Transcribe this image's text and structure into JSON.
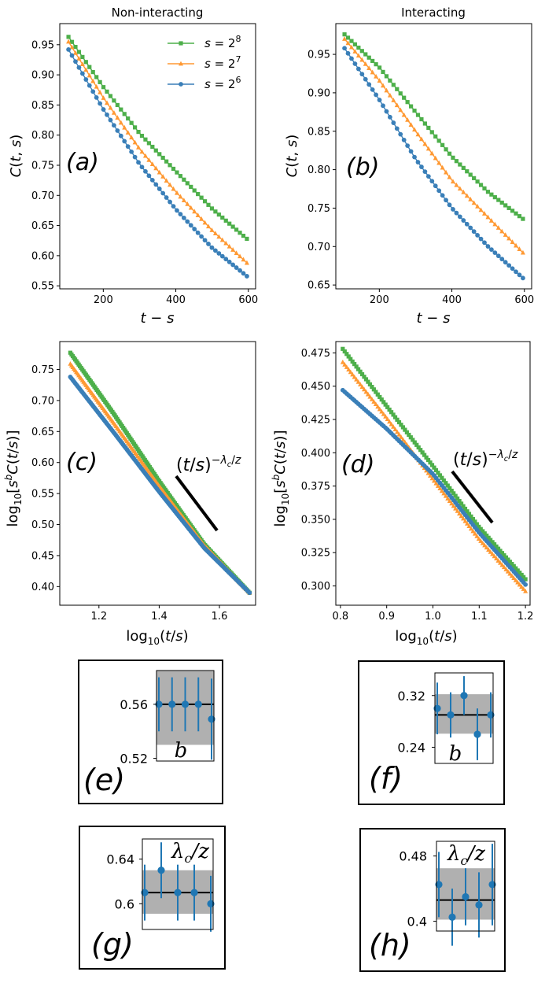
{
  "colors": {
    "s8": "#4daf4a",
    "s7": "#ff9933",
    "s6": "#3a7fb8",
    "inset_point": "#1f77b4",
    "band": "#b0b0b0"
  },
  "chart_data": [
    {
      "id": "a",
      "type": "line",
      "title": "Non-interacting",
      "panel_label": "(a)",
      "xlabel": "t − s",
      "ylabel": "C(t, s)",
      "xlim": [
        80,
        620
      ],
      "ylim": [
        0.545,
        0.985
      ],
      "xticks": [
        "200",
        "400",
        "600"
      ],
      "yticks": [
        "0.55",
        "0.60",
        "0.65",
        "0.70",
        "0.75",
        "0.80",
        "0.85",
        "0.90",
        "0.95"
      ],
      "legend_position": "top-right",
      "series": [
        {
          "name": "s = 2^8",
          "marker": "square",
          "x": [
            104,
            200,
            300,
            400,
            500,
            596
          ],
          "values": [
            0.963,
            0.88,
            0.803,
            0.74,
            0.678,
            0.628
          ]
        },
        {
          "name": "s = 2^7",
          "marker": "triangle",
          "x": [
            104,
            200,
            300,
            400,
            500,
            596
          ],
          "values": [
            0.955,
            0.862,
            0.777,
            0.706,
            0.642,
            0.588
          ]
        },
        {
          "name": "s = 2^6",
          "marker": "circle",
          "x": [
            104,
            200,
            300,
            400,
            500,
            596
          ],
          "values": [
            0.942,
            0.843,
            0.752,
            0.677,
            0.613,
            0.566
          ]
        }
      ]
    },
    {
      "id": "b",
      "type": "line",
      "title": "Interacting",
      "panel_label": "(b)",
      "xlabel": "t − s",
      "ylabel": "C(t, s)",
      "xlim": [
        80,
        620
      ],
      "ylim": [
        0.645,
        0.99
      ],
      "xticks": [
        "200",
        "400",
        "600"
      ],
      "yticks": [
        "0.65",
        "0.70",
        "0.75",
        "0.80",
        "0.85",
        "0.90",
        "0.95"
      ],
      "series": [
        {
          "name": "s = 2^8",
          "marker": "square",
          "x": [
            104,
            200,
            300,
            400,
            500,
            596
          ],
          "values": [
            0.976,
            0.933,
            0.875,
            0.817,
            0.771,
            0.736
          ]
        },
        {
          "name": "s = 2^7",
          "marker": "triangle",
          "x": [
            104,
            200,
            300,
            400,
            500,
            596
          ],
          "values": [
            0.97,
            0.916,
            0.85,
            0.786,
            0.738,
            0.692
          ]
        },
        {
          "name": "s = 2^6",
          "marker": "circle",
          "x": [
            104,
            200,
            300,
            400,
            500,
            596
          ],
          "values": [
            0.958,
            0.891,
            0.814,
            0.75,
            0.7,
            0.659
          ]
        }
      ]
    },
    {
      "id": "c",
      "type": "line",
      "panel_label": "(c)",
      "xlabel": "log10(t/s)",
      "ylabel": "log10[s^b C(t/s)]",
      "xlim": [
        1.07,
        1.72
      ],
      "ylim": [
        0.37,
        0.795
      ],
      "xticks": [
        "1.2",
        "1.4",
        "1.6"
      ],
      "yticks": [
        "0.40",
        "0.45",
        "0.50",
        "0.55",
        "0.60",
        "0.65",
        "0.70",
        "0.75"
      ],
      "annotation": "(t/s)^(−λc/z)",
      "series": [
        {
          "name": "s = 2^8",
          "marker": "square",
          "x": [
            1.105,
            1.25,
            1.4,
            1.55,
            1.7
          ],
          "values": [
            0.777,
            0.678,
            0.57,
            0.468,
            0.39
          ]
        },
        {
          "name": "s = 2^7",
          "marker": "triangle",
          "x": [
            1.105,
            1.25,
            1.4,
            1.55,
            1.7
          ],
          "values": [
            0.759,
            0.663,
            0.562,
            0.466,
            0.39
          ]
        },
        {
          "name": "s = 2^6",
          "marker": "circle",
          "x": [
            1.105,
            1.25,
            1.4,
            1.55,
            1.7
          ],
          "values": [
            0.738,
            0.648,
            0.553,
            0.462,
            0.39
          ]
        }
      ]
    },
    {
      "id": "d",
      "type": "line",
      "panel_label": "(d)",
      "xlabel": "log10(t/s)",
      "ylabel": "log10[s^b C(t/s)]",
      "xlim": [
        0.79,
        1.21
      ],
      "ylim": [
        0.2855,
        0.4835
      ],
      "xticks": [
        "0.8",
        "0.9",
        "1.0",
        "1.1",
        "1.2"
      ],
      "yticks": [
        "0.300",
        "0.325",
        "0.350",
        "0.375",
        "0.400",
        "0.425",
        "0.450",
        "0.475"
      ],
      "annotation": "(t/s)^(−λc/z)",
      "series": [
        {
          "name": "s = 2^8",
          "marker": "square",
          "x": [
            0.805,
            0.9,
            1.0,
            1.1,
            1.2
          ],
          "values": [
            0.478,
            0.435,
            0.39,
            0.344,
            0.305
          ]
        },
        {
          "name": "s = 2^7",
          "marker": "triangle",
          "x": [
            0.805,
            0.9,
            1.0,
            1.1,
            1.2
          ],
          "values": [
            0.468,
            0.426,
            0.38,
            0.335,
            0.296
          ]
        },
        {
          "name": "s = 2^6",
          "marker": "circle",
          "x": [
            0.805,
            0.9,
            1.0,
            1.1,
            1.2
          ],
          "values": [
            0.447,
            0.418,
            0.384,
            0.34,
            0.301
          ]
        }
      ]
    },
    {
      "id": "e",
      "type": "scatter",
      "panel_label": "(e)",
      "inset_label": "b",
      "ylim": [
        0.518,
        0.585
      ],
      "yticks": [
        "0.56",
        "0.52"
      ],
      "mean": 0.56,
      "band": [
        0.53,
        0.585
      ],
      "points": [
        {
          "y": 0.56,
          "err": 0.02
        },
        {
          "y": 0.56,
          "err": 0.02
        },
        {
          "y": 0.56,
          "err": 0.02
        },
        {
          "y": 0.56,
          "err": 0.02
        },
        {
          "y": 0.549,
          "err": 0.03
        }
      ]
    },
    {
      "id": "f",
      "type": "scatter",
      "panel_label": "(f)",
      "inset_label": "b",
      "ylim": [
        0.215,
        0.355
      ],
      "yticks": [
        "0.32",
        "0.24"
      ],
      "mean": 0.29,
      "band": [
        0.261,
        0.322
      ],
      "points": [
        {
          "y": 0.3,
          "err": 0.04
        },
        {
          "y": 0.29,
          "err": 0.035
        },
        {
          "y": 0.32,
          "err": 0.03
        },
        {
          "y": 0.26,
          "err": 0.04
        },
        {
          "y": 0.29,
          "err": 0.035
        }
      ]
    },
    {
      "id": "g",
      "type": "scatter",
      "panel_label": "(g)",
      "inset_label": "λc/z",
      "ylim": [
        0.577,
        0.658
      ],
      "yticks": [
        "0.64",
        "0.6"
      ],
      "mean": 0.61,
      "band": [
        0.591,
        0.63
      ],
      "points": [
        {
          "y": 0.61,
          "err": 0.025
        },
        {
          "y": 0.63,
          "err": 0.025
        },
        {
          "y": 0.61,
          "err": 0.025
        },
        {
          "y": 0.61,
          "err": 0.025
        },
        {
          "y": 0.6,
          "err": 0.025
        }
      ]
    },
    {
      "id": "h",
      "type": "scatter",
      "panel_label": "(h)",
      "inset_label": "λc/z",
      "ylim": [
        0.388,
        0.498
      ],
      "yticks": [
        "0.48",
        "0.4"
      ],
      "mean": 0.426,
      "band": [
        0.402,
        0.465
      ],
      "points": [
        {
          "y": 0.445,
          "err": 0.04
        },
        {
          "y": 0.405,
          "err": 0.035
        },
        {
          "y": 0.43,
          "err": 0.035
        },
        {
          "y": 0.42,
          "err": 0.04
        },
        {
          "y": 0.445,
          "err": 0.05
        }
      ]
    }
  ]
}
